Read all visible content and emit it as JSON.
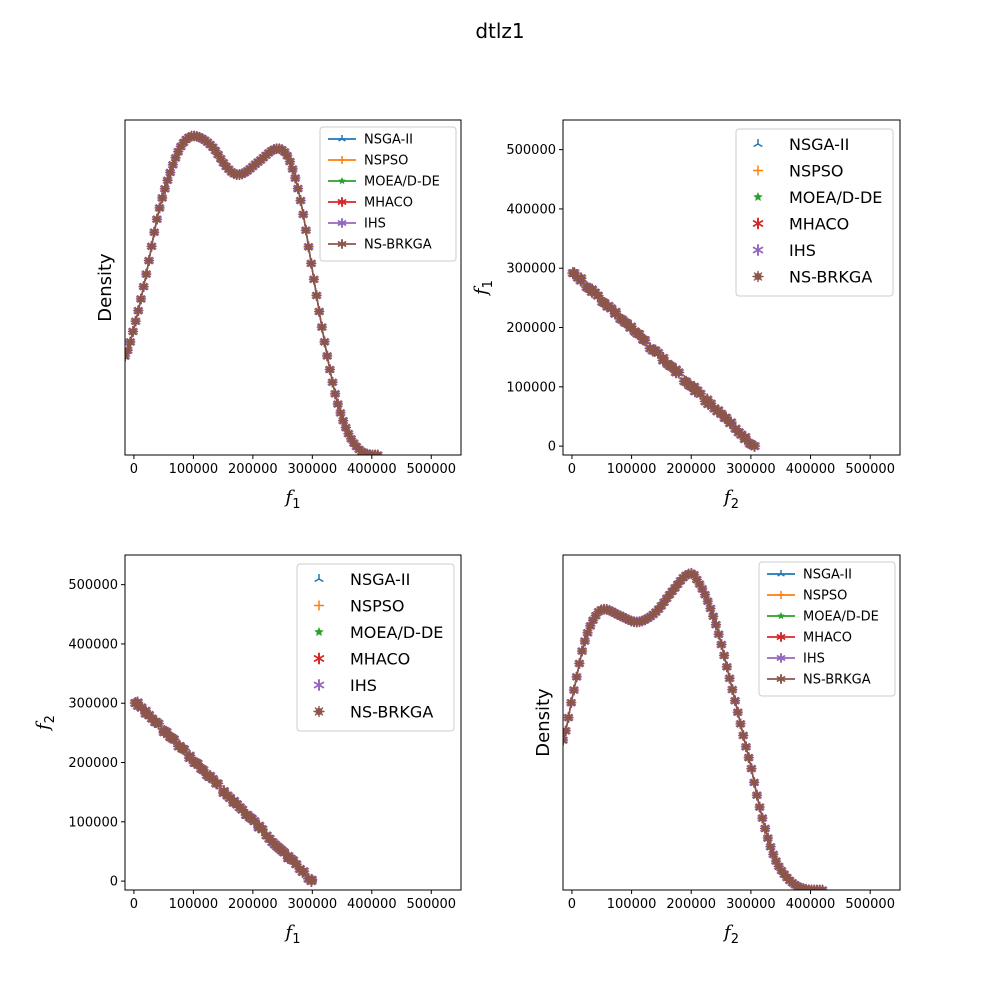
{
  "figure": {
    "title": "dtlz1"
  },
  "colors": {
    "NSGA-II": "#1f77b4",
    "NSPSO": "#ff7f0e",
    "MOEA/D-DE": "#2ca02c",
    "MHACO": "#d62728",
    "IHS": "#9467bd",
    "NS-BRKGA": "#8c564b"
  },
  "chart_data": [
    {
      "type": "line",
      "panel": "top-left",
      "xlabel_base": "f",
      "xlabel_sub": "1",
      "ylabel": "Density",
      "xlim": [
        -15000,
        550000
      ],
      "ylim": [
        0,
        1.05
      ],
      "xticks": [
        0,
        100000,
        200000,
        300000,
        400000,
        500000
      ],
      "yticks": [],
      "legend": {
        "position": "upper right",
        "style": "line",
        "entries": [
          "NSGA-II",
          "NSPSO",
          "MOEA/D-DE",
          "MHACO",
          "IHS",
          "NS-BRKGA"
        ]
      },
      "curve_points": [
        [
          -15000,
          0.31
        ],
        [
          0,
          0.4
        ],
        [
          20000,
          0.56
        ],
        [
          40000,
          0.75
        ],
        [
          60000,
          0.88
        ],
        [
          80000,
          0.97
        ],
        [
          100000,
          1.0
        ],
        [
          130000,
          0.97
        ],
        [
          160000,
          0.895
        ],
        [
          180000,
          0.88
        ],
        [
          210000,
          0.92
        ],
        [
          240000,
          0.96
        ],
        [
          260000,
          0.93
        ],
        [
          280000,
          0.8
        ],
        [
          300000,
          0.58
        ],
        [
          320000,
          0.36
        ],
        [
          340000,
          0.18
        ],
        [
          360000,
          0.07
        ],
        [
          380000,
          0.015
        ],
        [
          400000,
          0.0
        ],
        [
          410000,
          0.0
        ]
      ],
      "x_range_data": [
        -15000,
        410000
      ],
      "series": [
        {
          "name": "NSGA-II"
        },
        {
          "name": "NSPSO"
        },
        {
          "name": "MOEA/D-DE"
        },
        {
          "name": "MHACO"
        },
        {
          "name": "IHS"
        },
        {
          "name": "NS-BRKGA"
        }
      ]
    },
    {
      "type": "scatter",
      "panel": "top-right",
      "xlabel_base": "f",
      "xlabel_sub": "2",
      "ylabel_base": "f",
      "ylabel_sub": "1",
      "xlim": [
        -15000,
        550000
      ],
      "ylim": [
        -15000,
        550000
      ],
      "xticks": [
        0,
        100000,
        200000,
        300000,
        400000,
        500000
      ],
      "yticks": [
        0,
        100000,
        200000,
        300000,
        400000,
        500000
      ],
      "legend": {
        "position": "upper right",
        "style": "marker",
        "entries": [
          "NSGA-II",
          "NSPSO",
          "MOEA/D-DE",
          "MHACO",
          "IHS",
          "NS-BRKGA"
        ]
      },
      "front": {
        "from": [
          0,
          295000
        ],
        "to": [
          305000,
          0
        ],
        "count": 70,
        "max_jitter": 6000
      },
      "series": [
        {
          "name": "NSGA-II"
        },
        {
          "name": "NSPSO"
        },
        {
          "name": "MOEA/D-DE"
        },
        {
          "name": "MHACO"
        },
        {
          "name": "IHS"
        },
        {
          "name": "NS-BRKGA"
        }
      ]
    },
    {
      "type": "scatter",
      "panel": "bottom-left",
      "xlabel_base": "f",
      "xlabel_sub": "1",
      "ylabel_base": "f",
      "ylabel_sub": "2",
      "xlim": [
        -15000,
        550000
      ],
      "ylim": [
        -15000,
        550000
      ],
      "xticks": [
        0,
        100000,
        200000,
        300000,
        400000,
        500000
      ],
      "yticks": [
        0,
        100000,
        200000,
        300000,
        400000,
        500000
      ],
      "legend": {
        "position": "upper right",
        "style": "marker",
        "entries": [
          "NSGA-II",
          "NSPSO",
          "MOEA/D-DE",
          "MHACO",
          "IHS",
          "NS-BRKGA"
        ]
      },
      "front": {
        "from": [
          0,
          305000
        ],
        "to": [
          300000,
          0
        ],
        "count": 70,
        "max_jitter": 6000
      },
      "series": [
        {
          "name": "NSGA-II"
        },
        {
          "name": "NSPSO"
        },
        {
          "name": "MOEA/D-DE"
        },
        {
          "name": "MHACO"
        },
        {
          "name": "IHS"
        },
        {
          "name": "NS-BRKGA"
        }
      ]
    },
    {
      "type": "line",
      "panel": "bottom-right",
      "xlabel_base": "f",
      "xlabel_sub": "2",
      "ylabel": "Density",
      "xlim": [
        -15000,
        550000
      ],
      "ylim": [
        0,
        1.05
      ],
      "xticks": [
        0,
        100000,
        200000,
        300000,
        400000,
        500000
      ],
      "yticks": [],
      "legend": {
        "position": "upper right",
        "style": "line",
        "entries": [
          "NSGA-II",
          "NSPSO",
          "MOEA/D-DE",
          "MHACO",
          "IHS",
          "NS-BRKGA"
        ]
      },
      "curve_points": [
        [
          -15000,
          0.47
        ],
        [
          0,
          0.6
        ],
        [
          20000,
          0.77
        ],
        [
          40000,
          0.86
        ],
        [
          55000,
          0.88
        ],
        [
          80000,
          0.86
        ],
        [
          110000,
          0.84
        ],
        [
          140000,
          0.87
        ],
        [
          170000,
          0.94
        ],
        [
          195000,
          0.99
        ],
        [
          210000,
          0.97
        ],
        [
          240000,
          0.84
        ],
        [
          270000,
          0.62
        ],
        [
          300000,
          0.39
        ],
        [
          320000,
          0.22
        ],
        [
          340000,
          0.1
        ],
        [
          360000,
          0.04
        ],
        [
          380000,
          0.01
        ],
        [
          400000,
          0.0
        ],
        [
          420000,
          0.0
        ]
      ],
      "x_range_data": [
        -15000,
        420000
      ],
      "series": [
        {
          "name": "NSGA-II"
        },
        {
          "name": "NSPSO"
        },
        {
          "name": "MOEA/D-DE"
        },
        {
          "name": "MHACO"
        },
        {
          "name": "IHS"
        },
        {
          "name": "NS-BRKGA"
        }
      ]
    }
  ]
}
